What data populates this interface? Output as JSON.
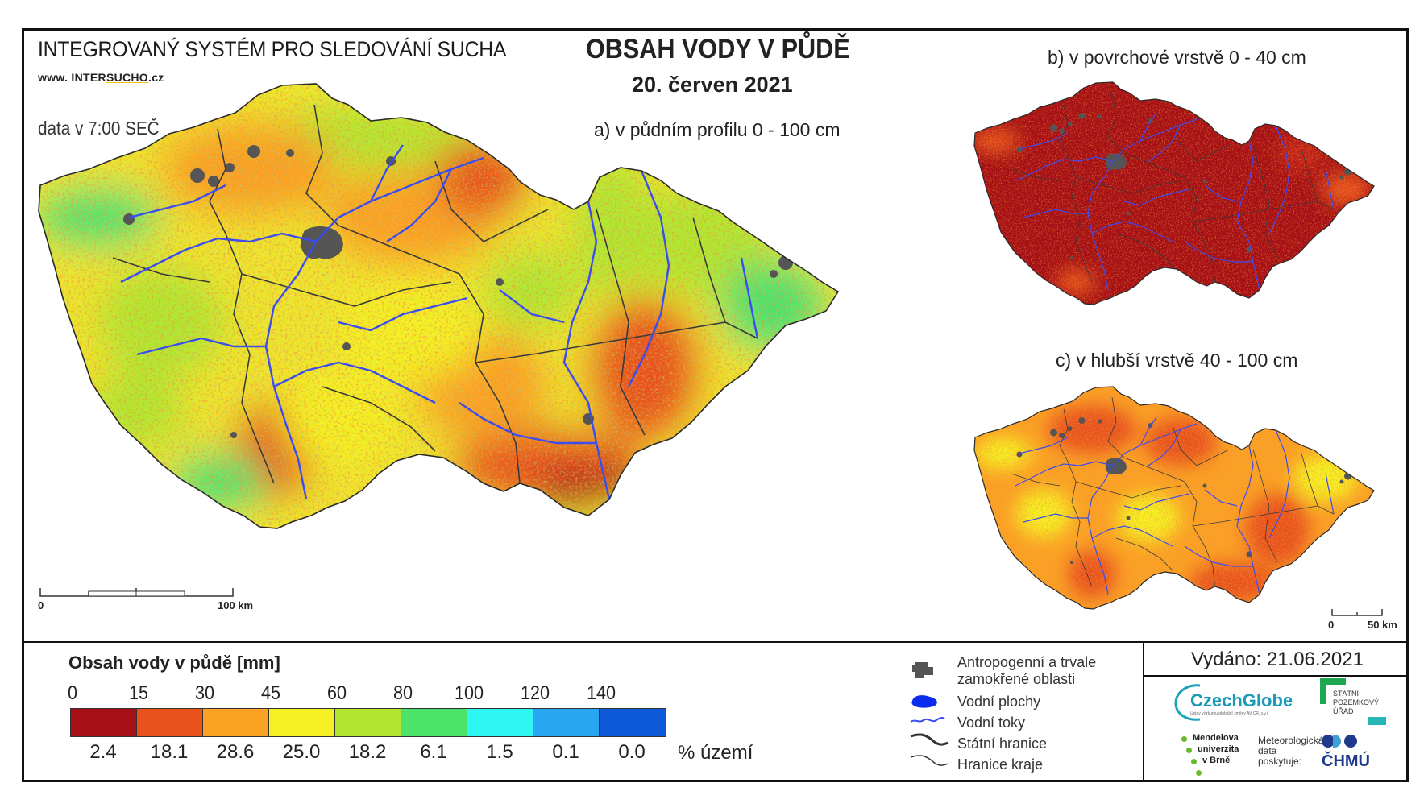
{
  "header": {
    "system_title": "INTEGROVANÝ SYSTÉM PRO SLEDOVÁNÍ SUCHA",
    "website_prefix": "www. INTER",
    "website_highlight": "SUCHO",
    "website_suffix": ".cz",
    "data_time": "data v 7:00 SEČ",
    "main_title": "OBSAH VODY V PŮDĚ",
    "date": "20. červen 2021"
  },
  "maps": {
    "a_label": "a) v půdním profilu 0 - 100 cm",
    "b_label": "b) v povrchové vrstvě 0 - 40 cm",
    "c_label": "c) v hlubší vrstvě 40 - 100 cm"
  },
  "scalebar_main": {
    "start": "0",
    "end": "100 km"
  },
  "scalebar_small": {
    "start": "0",
    "end": "50 km"
  },
  "legend": {
    "title": "Obsah vody v půdě  [mm]",
    "ticks": [
      "0",
      "15",
      "30",
      "45",
      "60",
      "80",
      "100",
      "120",
      "140"
    ],
    "colors": [
      "#a50f15",
      "#e8531c",
      "#fba124",
      "#f5f023",
      "#b2e62e",
      "#4de36b",
      "#2ef7f3",
      "#29a6f2",
      "#0d5ad8"
    ],
    "percentages": [
      "2.4",
      "18.1",
      "28.6",
      "25.0",
      "18.2",
      "6.1",
      "1.5",
      "0.1",
      "0.0"
    ],
    "percent_unit": "% území"
  },
  "symbols": {
    "anthropogenic": "Antropogenní a trvale zamokřené oblasti",
    "water_bodies": "Vodní plochy",
    "water_streams": "Vodní toky",
    "state_border": "Státní hranice",
    "region_border": "Hranice kraje"
  },
  "footer": {
    "issued": "Vydáno: 21.06.2021",
    "czechglobe": "CzechGlobe",
    "czechglobe_sub": "Ústav výzkumu globální změny AV ČR, v.v.i.",
    "spu": "STÁTNÍ POZEMKOVÝ ÚŘAD",
    "mendelu_1": "Mendelova",
    "mendelu_2": "univerzita",
    "mendelu_3": "v Brně",
    "met_data": "Meteorologická data poskytuje:",
    "chmu": "ČHMÚ"
  },
  "colors": {
    "dark_red": "#a50f15",
    "orange": "#e8531c",
    "light_orange": "#fba124",
    "yellow": "#f5f023",
    "lime": "#b2e62e",
    "green": "#4de36b",
    "river_blue": "#3b4cf0",
    "urban_grey": "#555555"
  }
}
